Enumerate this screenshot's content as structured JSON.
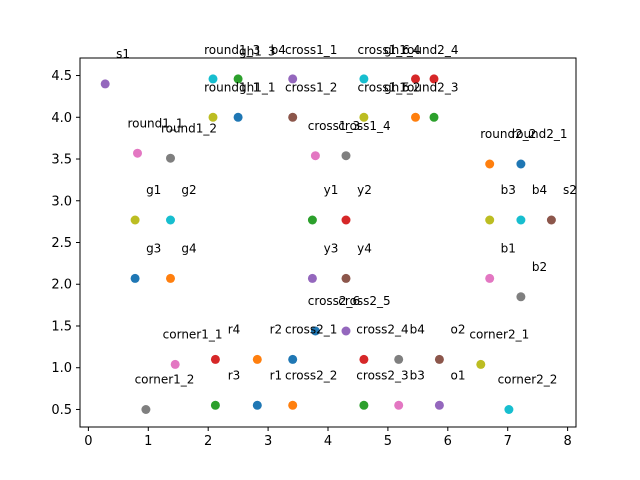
{
  "chart_data": {
    "type": "scatter",
    "title": "",
    "xlabel": "",
    "ylabel": "",
    "xlim": [
      -0.14,
      8.14
    ],
    "ylim": [
      0.29,
      4.71
    ],
    "xticks": [
      0,
      1,
      2,
      3,
      4,
      5,
      6,
      7,
      8
    ],
    "yticks": [
      0.5,
      1.0,
      1.5,
      2.0,
      2.5,
      3.0,
      3.5,
      4.0,
      4.5
    ],
    "ytick_labels": [
      "0.5",
      "1.0",
      "1.5",
      "2.0",
      "2.5",
      "3.0",
      "3.5",
      "4.0",
      "4.5"
    ],
    "grid": false,
    "legend": "none",
    "points": [
      {
        "x": 0.28,
        "y": 4.4,
        "color": "#9467bd"
      },
      {
        "x": 2.08,
        "y": 4.46,
        "color": "#17becf"
      },
      {
        "x": 2.5,
        "y": 4.46,
        "color": "#2ca02c"
      },
      {
        "x": 3.41,
        "y": 4.46,
        "color": "#9467bd"
      },
      {
        "x": 4.6,
        "y": 4.46,
        "color": "#17becf"
      },
      {
        "x": 5.46,
        "y": 4.46,
        "color": "#d62728"
      },
      {
        "x": 5.77,
        "y": 4.46,
        "color": "#d62728"
      },
      {
        "x": 2.08,
        "y": 4.0,
        "color": "#bcbd22"
      },
      {
        "x": 2.5,
        "y": 4.0,
        "color": "#1f77b4"
      },
      {
        "x": 3.41,
        "y": 4.0,
        "color": "#8c564b"
      },
      {
        "x": 4.6,
        "y": 4.0,
        "color": "#bcbd22"
      },
      {
        "x": 5.46,
        "y": 4.0,
        "color": "#ff7f0e"
      },
      {
        "x": 5.77,
        "y": 4.0,
        "color": "#2ca02c"
      },
      {
        "x": 0.82,
        "y": 3.57,
        "color": "#e377c2"
      },
      {
        "x": 1.37,
        "y": 3.51,
        "color": "#7f7f7f"
      },
      {
        "x": 3.79,
        "y": 3.54,
        "color": "#e377c2"
      },
      {
        "x": 4.3,
        "y": 3.54,
        "color": "#7f7f7f"
      },
      {
        "x": 6.7,
        "y": 3.44,
        "color": "#ff7f0e"
      },
      {
        "x": 7.22,
        "y": 3.44,
        "color": "#1f77b4"
      },
      {
        "x": 0.78,
        "y": 2.77,
        "color": "#bcbd22"
      },
      {
        "x": 1.37,
        "y": 2.77,
        "color": "#17becf"
      },
      {
        "x": 3.74,
        "y": 2.77,
        "color": "#2ca02c"
      },
      {
        "x": 4.3,
        "y": 2.77,
        "color": "#d62728"
      },
      {
        "x": 6.7,
        "y": 2.77,
        "color": "#bcbd22"
      },
      {
        "x": 7.22,
        "y": 2.77,
        "color": "#17becf"
      },
      {
        "x": 7.73,
        "y": 2.77,
        "color": "#8c564b"
      },
      {
        "x": 0.78,
        "y": 2.07,
        "color": "#1f77b4"
      },
      {
        "x": 1.37,
        "y": 2.07,
        "color": "#ff7f0e"
      },
      {
        "x": 3.74,
        "y": 2.07,
        "color": "#9467bd"
      },
      {
        "x": 4.3,
        "y": 2.07,
        "color": "#8c564b"
      },
      {
        "x": 6.7,
        "y": 2.07,
        "color": "#e377c2"
      },
      {
        "x": 7.22,
        "y": 1.85,
        "color": "#7f7f7f"
      },
      {
        "x": 3.79,
        "y": 1.44,
        "color": "#1f77b4"
      },
      {
        "x": 4.3,
        "y": 1.44,
        "color": "#9467bd"
      },
      {
        "x": 2.12,
        "y": 1.1,
        "color": "#d62728"
      },
      {
        "x": 2.82,
        "y": 1.1,
        "color": "#ff7f0e"
      },
      {
        "x": 3.41,
        "y": 1.1,
        "color": "#1f77b4"
      },
      {
        "x": 4.6,
        "y": 1.1,
        "color": "#d62728"
      },
      {
        "x": 5.18,
        "y": 1.1,
        "color": "#7f7f7f"
      },
      {
        "x": 5.86,
        "y": 1.1,
        "color": "#8c564b"
      },
      {
        "x": 6.55,
        "y": 1.04,
        "color": "#bcbd22"
      },
      {
        "x": 1.45,
        "y": 1.04,
        "color": "#e377c2"
      },
      {
        "x": 0.96,
        "y": 0.5,
        "color": "#7f7f7f"
      },
      {
        "x": 2.12,
        "y": 0.55,
        "color": "#2ca02c"
      },
      {
        "x": 2.82,
        "y": 0.55,
        "color": "#1f77b4"
      },
      {
        "x": 3.41,
        "y": 0.55,
        "color": "#ff7f0e"
      },
      {
        "x": 4.6,
        "y": 0.55,
        "color": "#2ca02c"
      },
      {
        "x": 5.18,
        "y": 0.55,
        "color": "#e377c2"
      },
      {
        "x": 5.86,
        "y": 0.55,
        "color": "#9467bd"
      },
      {
        "x": 7.02,
        "y": 0.5,
        "color": "#17becf"
      }
    ],
    "annotations": [
      {
        "text": "s1",
        "x": 0.58,
        "y": 4.71
      },
      {
        "text": "round1_3",
        "x": 2.4,
        "y": 4.76
      },
      {
        "text": "gh1_3",
        "x": 2.82,
        "y": 4.74
      },
      {
        "text": "b4",
        "x": 3.17,
        "y": 4.76
      },
      {
        "text": "cross1_1",
        "x": 3.72,
        "y": 4.76
      },
      {
        "text": "cross1_6",
        "x": 4.93,
        "y": 4.76
      },
      {
        "text": "gh1_4",
        "x": 5.24,
        "y": 4.76
      },
      {
        "text": "round2_4",
        "x": 5.71,
        "y": 4.76
      },
      {
        "text": "round1_1",
        "x": 2.4,
        "y": 4.31
      },
      {
        "text": "gh1_1",
        "x": 2.82,
        "y": 4.31
      },
      {
        "text": "cross1_2",
        "x": 3.72,
        "y": 4.31
      },
      {
        "text": "cross1_5",
        "x": 4.93,
        "y": 4.31
      },
      {
        "text": "gh1_2",
        "x": 5.24,
        "y": 4.31
      },
      {
        "text": "round2_3",
        "x": 5.71,
        "y": 4.31
      },
      {
        "text": "round1_1",
        "x": 1.12,
        "y": 3.88
      },
      {
        "text": "round1_2",
        "x": 1.68,
        "y": 3.82
      },
      {
        "text": "cross1_3",
        "x": 4.1,
        "y": 3.85
      },
      {
        "text": "cross1_4",
        "x": 4.61,
        "y": 3.85
      },
      {
        "text": "round2_2",
        "x": 7.01,
        "y": 3.75
      },
      {
        "text": "round2_1",
        "x": 7.53,
        "y": 3.75
      },
      {
        "text": "g1",
        "x": 1.09,
        "y": 3.08
      },
      {
        "text": "g2",
        "x": 1.68,
        "y": 3.08
      },
      {
        "text": "y1",
        "x": 4.05,
        "y": 3.08
      },
      {
        "text": "y2",
        "x": 4.61,
        "y": 3.08
      },
      {
        "text": "b3",
        "x": 7.01,
        "y": 3.08
      },
      {
        "text": "b4",
        "x": 7.53,
        "y": 3.08
      },
      {
        "text": "s2",
        "x": 8.04,
        "y": 3.08
      },
      {
        "text": "g3",
        "x": 1.09,
        "y": 2.38
      },
      {
        "text": "g4",
        "x": 1.68,
        "y": 2.38
      },
      {
        "text": "y3",
        "x": 4.05,
        "y": 2.38
      },
      {
        "text": "y4",
        "x": 4.61,
        "y": 2.38
      },
      {
        "text": "b1",
        "x": 7.01,
        "y": 2.38
      },
      {
        "text": "b2",
        "x": 7.53,
        "y": 2.16
      },
      {
        "text": "cross2_6",
        "x": 4.1,
        "y": 1.75
      },
      {
        "text": "cross2_5",
        "x": 4.61,
        "y": 1.75
      },
      {
        "text": "corner1_1",
        "x": 1.74,
        "y": 1.35
      },
      {
        "text": "r4",
        "x": 2.43,
        "y": 1.41
      },
      {
        "text": "r2",
        "x": 3.13,
        "y": 1.41
      },
      {
        "text": "cross2_1",
        "x": 3.72,
        "y": 1.41
      },
      {
        "text": "cross2_4",
        "x": 4.91,
        "y": 1.41
      },
      {
        "text": "b4",
        "x": 5.49,
        "y": 1.41
      },
      {
        "text": "o2",
        "x": 6.17,
        "y": 1.41
      },
      {
        "text": "corner2_1",
        "x": 6.86,
        "y": 1.35
      },
      {
        "text": "corner1_2",
        "x": 1.27,
        "y": 0.81
      },
      {
        "text": "r3",
        "x": 2.43,
        "y": 0.86
      },
      {
        "text": "r1",
        "x": 3.13,
        "y": 0.86
      },
      {
        "text": "cross2_2",
        "x": 3.72,
        "y": 0.86
      },
      {
        "text": "cross2_3",
        "x": 4.91,
        "y": 0.86
      },
      {
        "text": "b3",
        "x": 5.49,
        "y": 0.86
      },
      {
        "text": "o1",
        "x": 6.17,
        "y": 0.86
      },
      {
        "text": "corner2_2",
        "x": 7.33,
        "y": 0.81
      }
    ]
  }
}
